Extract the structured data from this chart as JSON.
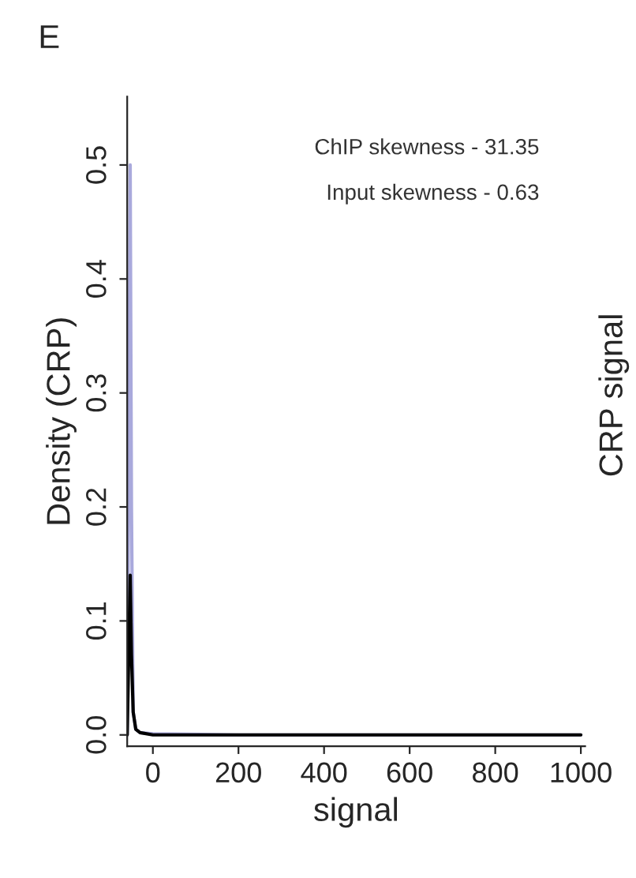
{
  "chart_data": {
    "type": "line",
    "title": "E",
    "xlabel": "signal",
    "ylabel": "Density (CRP)",
    "y2label": "CRP signal",
    "annotations": [
      "ChIP skewness - 31.35",
      "Input skewness - 0.63"
    ],
    "series": [
      {
        "color": "#a9a9dc",
        "x": [
          -60,
          -53,
          -50,
          -46,
          -40,
          -30,
          0,
          200,
          600,
          1000
        ],
        "values": [
          0,
          0.5,
          0.2,
          0.02,
          0.005,
          0.002,
          0.001,
          0,
          0,
          0
        ]
      },
      {
        "color": "#000000",
        "x": [
          -60,
          -53,
          -50,
          -46,
          -40,
          -30,
          0,
          200,
          600,
          1000
        ],
        "values": [
          0,
          0.14,
          0.07,
          0.02,
          0.005,
          0.002,
          0,
          0,
          0,
          0
        ]
      }
    ],
    "xlim": [
      -60,
      1010
    ],
    "ylim": [
      -0.01,
      0.56
    ],
    "xticks": [
      0,
      200,
      400,
      600,
      800,
      1000
    ],
    "yticks": [
      {
        "value": 0,
        "label": "0.0"
      },
      0.1,
      0.2,
      0.3,
      0.4,
      0.5
    ],
    "grid": false,
    "legend": false
  }
}
